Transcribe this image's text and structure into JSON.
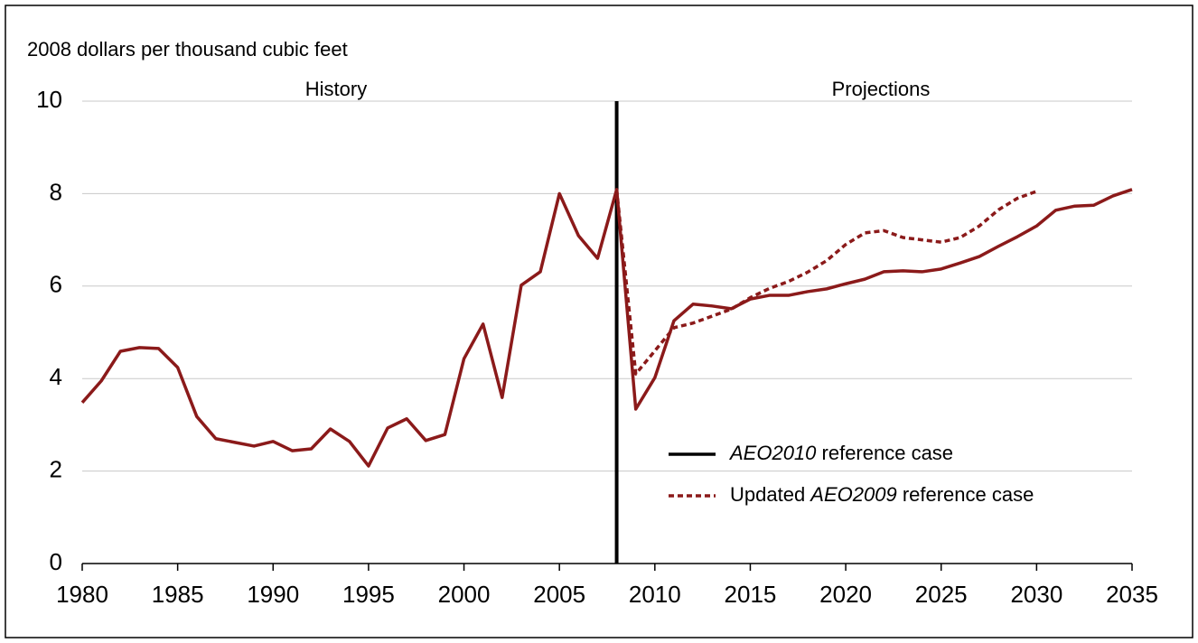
{
  "chart_data": {
    "type": "line",
    "y_axis_label": "2008 dollars per thousand cubic feet",
    "annotations": [
      "History",
      "Projections"
    ],
    "divider_x": 2008,
    "x": [
      1980,
      1981,
      1982,
      1983,
      1984,
      1985,
      1986,
      1987,
      1988,
      1989,
      1990,
      1991,
      1992,
      1993,
      1994,
      1995,
      1996,
      1997,
      1998,
      1999,
      2000,
      2001,
      2002,
      2003,
      2004,
      2005,
      2006,
      2007,
      2008,
      2009,
      2010,
      2011,
      2012,
      2013,
      2014,
      2015,
      2016,
      2017,
      2018,
      2019,
      2020,
      2021,
      2022,
      2023,
      2024,
      2025,
      2026,
      2027,
      2028,
      2029,
      2030,
      2031,
      2032,
      2033,
      2034,
      2035
    ],
    "series": [
      {
        "name": "AEO2010 reference case",
        "color": "#8b1a1a",
        "style": "solid",
        "values": [
          3.48,
          3.95,
          4.59,
          4.67,
          4.65,
          4.24,
          3.18,
          2.7,
          2.62,
          2.54,
          2.64,
          2.44,
          2.48,
          2.91,
          2.64,
          2.11,
          2.93,
          3.13,
          2.66,
          2.79,
          4.43,
          5.18,
          3.59,
          6.02,
          6.31,
          8.0,
          7.09,
          6.6,
          8.09,
          3.34,
          4.02,
          5.25,
          5.61,
          5.57,
          5.51,
          5.72,
          5.8,
          5.8,
          5.88,
          5.94,
          6.05,
          6.15,
          6.31,
          6.33,
          6.31,
          6.37,
          6.5,
          6.64,
          6.86,
          7.07,
          7.3,
          7.64,
          7.73,
          7.75,
          7.95,
          8.09
        ]
      },
      {
        "name": "Updated AEO2009 reference case",
        "color": "#8b1a1a",
        "style": "dotted",
        "values": [
          null,
          null,
          null,
          null,
          null,
          null,
          null,
          null,
          null,
          null,
          null,
          null,
          null,
          null,
          null,
          null,
          null,
          null,
          null,
          null,
          null,
          null,
          null,
          null,
          null,
          null,
          null,
          null,
          8.09,
          4.1,
          4.6,
          5.1,
          5.2,
          5.35,
          5.5,
          5.75,
          5.95,
          6.1,
          6.3,
          6.55,
          6.9,
          7.15,
          7.2,
          7.05,
          7.0,
          6.95,
          7.05,
          7.3,
          7.65,
          7.9,
          8.05,
          null,
          null,
          null,
          null,
          null
        ]
      }
    ],
    "xlim": [
      1980,
      2035
    ],
    "xticks": [
      1980,
      1985,
      1990,
      1995,
      2000,
      2005,
      2010,
      2015,
      2020,
      2025,
      2030,
      2035
    ],
    "ylim": [
      0,
      10
    ],
    "yticks": [
      0,
      2,
      4,
      6,
      8,
      10
    ],
    "grid": true,
    "legend": "lower right"
  }
}
